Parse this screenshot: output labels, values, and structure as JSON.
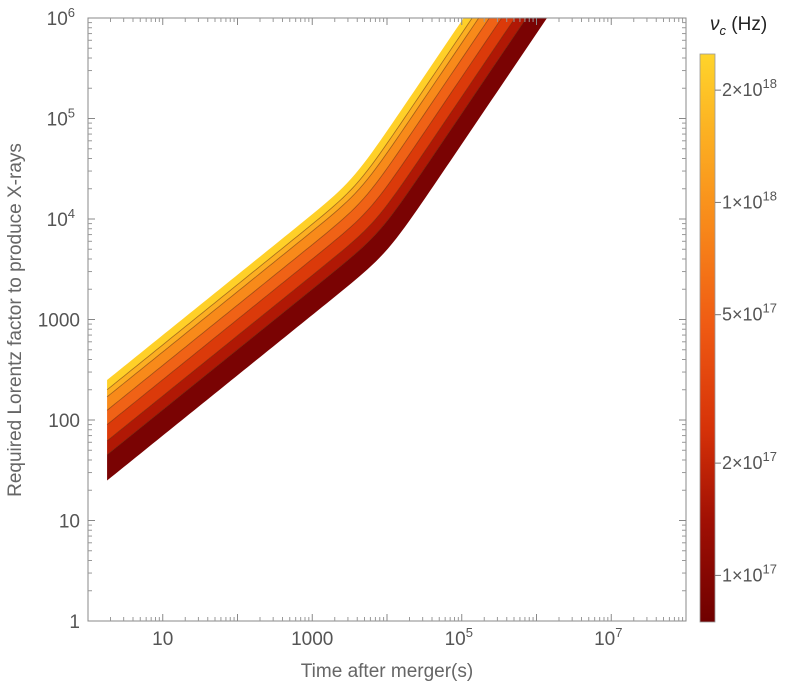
{
  "chart_data": {
    "type": "contour",
    "xlabel": "Time after merger(s)",
    "ylabel": "Required Lorentz factor to produce X-rays",
    "xscale": "log",
    "yscale": "log",
    "xlim": [
      1,
      100000000.0
    ],
    "ylim": [
      1,
      1000000.0
    ],
    "x_ticks": [
      {
        "value": 10,
        "label": "10"
      },
      {
        "value": 1000,
        "label": "1000"
      },
      {
        "value": 100000,
        "label": "10",
        "exp": "5"
      },
      {
        "value": 10000000,
        "label": "10",
        "exp": "7"
      }
    ],
    "y_ticks": [
      {
        "value": 1,
        "label": "1"
      },
      {
        "value": 10,
        "label": "10"
      },
      {
        "value": 100,
        "label": "100"
      },
      {
        "value": 1000,
        "label": "1000"
      },
      {
        "value": 10000,
        "label": "10",
        "exp": "4"
      },
      {
        "value": 100000,
        "label": "10",
        "exp": "5"
      },
      {
        "value": 1000000,
        "label": "10",
        "exp": "6"
      }
    ],
    "colorbar": {
      "title": "ν",
      "title_sub": "c",
      "title_unit": " (Hz)",
      "range": [
        7.5e+16,
        2.5e+18
      ],
      "scale": "log",
      "ticks": [
        {
          "value": 2e+18,
          "mant": "2",
          "exp": "18"
        },
        {
          "value": 1e+18,
          "mant": "1",
          "exp": "18"
        },
        {
          "value": 5e+17,
          "mant": "5",
          "exp": "17"
        },
        {
          "value": 2e+17,
          "mant": "2",
          "exp": "17"
        },
        {
          "value": 1e+17,
          "mant": "1",
          "exp": "17"
        }
      ]
    },
    "x_start": 1.8,
    "bands": [
      {
        "band": 1,
        "color": "#7a0303"
      },
      {
        "band": 2,
        "color": "#b01805"
      },
      {
        "band": 3,
        "color": "#db3a0a"
      },
      {
        "band": 4,
        "color": "#f06216"
      },
      {
        "band": 5,
        "color": "#f88a1a"
      },
      {
        "band": 6,
        "color": "#fcae22"
      },
      {
        "band": 7,
        "color": "#ffd028"
      }
    ],
    "band_edges": [
      {
        "edge": 0,
        "gamma_start": 25,
        "knee_t": 10000,
        "knee_gamma": 5000,
        "slope_early": 0.6,
        "slope_late": 1.1
      },
      {
        "edge": 1,
        "gamma_start": 45,
        "knee_t": 8000,
        "knee_gamma": 7000,
        "slope_early": 0.6,
        "slope_late": 1.1
      },
      {
        "edge": 2,
        "gamma_start": 62,
        "knee_t": 7000,
        "knee_gamma": 9000,
        "slope_early": 0.6,
        "slope_late": 1.1
      },
      {
        "edge": 3,
        "gamma_start": 90,
        "knee_t": 6000,
        "knee_gamma": 12000,
        "slope_early": 0.6,
        "slope_late": 1.1
      },
      {
        "edge": 4,
        "gamma_start": 125,
        "knee_t": 5000,
        "knee_gamma": 15000,
        "slope_early": 0.6,
        "slope_late": 1.1
      },
      {
        "edge": 5,
        "gamma_start": 170,
        "knee_t": 4500,
        "knee_gamma": 19000,
        "slope_early": 0.6,
        "slope_late": 1.1
      },
      {
        "edge": 6,
        "gamma_start": 200,
        "knee_t": 4000,
        "knee_gamma": 23000,
        "slope_early": 0.6,
        "slope_late": 1.1
      },
      {
        "edge": 7,
        "gamma_start": 250,
        "knee_t": 3500,
        "knee_gamma": 28000,
        "slope_early": 0.6,
        "slope_late": 1.1
      }
    ]
  }
}
